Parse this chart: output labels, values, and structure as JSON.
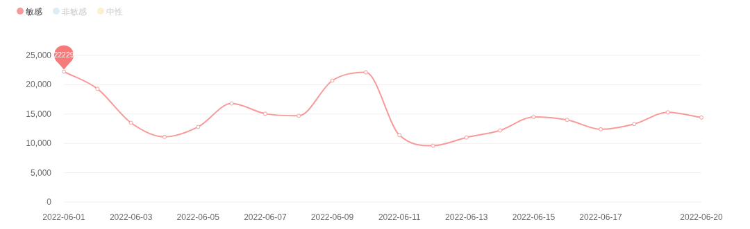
{
  "chart_data": {
    "type": "line",
    "categories": [
      "2022-06-01",
      null,
      "2022-06-03",
      null,
      "2022-06-05",
      null,
      "2022-06-07",
      null,
      "2022-06-09",
      null,
      "2022-06-11",
      null,
      "2022-06-13",
      null,
      "2022-06-15",
      null,
      "2022-06-17",
      null,
      null,
      "2022-06-20"
    ],
    "series": [
      {
        "name": "敏感",
        "color": "#f89a9a",
        "values": [
          22229,
          19300,
          13500,
          11100,
          12800,
          16800,
          15050,
          14700,
          20700,
          22100,
          11400,
          9600,
          11000,
          12200,
          14500,
          14000,
          12400,
          13300,
          15300,
          14400
        ]
      },
      {
        "name": "非敏感",
        "color": "#dcedf7",
        "values": [
          null,
          null,
          null,
          null,
          null,
          null,
          null,
          null,
          null,
          null,
          null,
          null,
          null,
          null,
          null,
          null,
          null,
          null,
          null,
          null
        ]
      },
      {
        "name": "中性",
        "color": "#fdefd2",
        "values": [
          null,
          null,
          null,
          null,
          null,
          null,
          null,
          null,
          null,
          null,
          null,
          null,
          null,
          null,
          null,
          null,
          null,
          null,
          null,
          null
        ]
      }
    ],
    "annotations": [
      {
        "text": "22229",
        "x": "2022-06-01",
        "y": 22229
      }
    ],
    "ylim": [
      0,
      25000
    ],
    "yticks": [
      {
        "value": 0,
        "label": "0"
      },
      {
        "value": 5000,
        "label": "5,000"
      },
      {
        "value": 10000,
        "label": "10,000"
      },
      {
        "value": 15000,
        "label": "15,000"
      },
      {
        "value": 20000,
        "label": "20,000"
      },
      {
        "value": 25000,
        "label": "25,000"
      }
    ],
    "grid": "y",
    "legend": "top left",
    "marker": "circle",
    "line_style": "solid"
  }
}
